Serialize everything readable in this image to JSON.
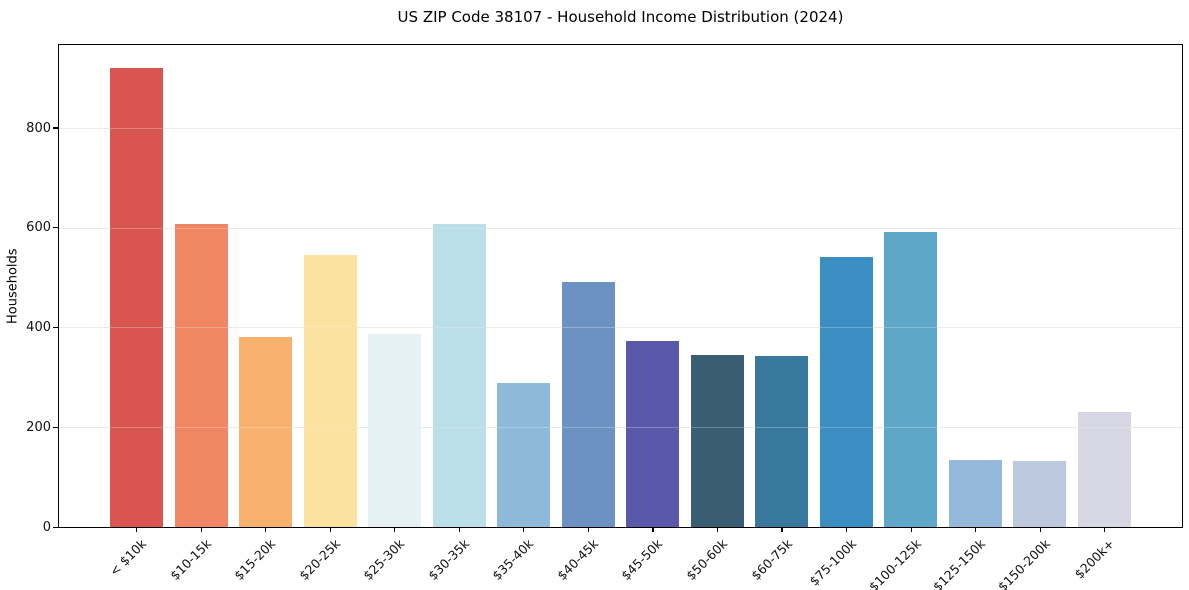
{
  "chart_data": {
    "type": "bar",
    "title": "US ZIP Code 38107 - Household Income Distribution (2024)",
    "xlabel": "",
    "ylabel": "Households",
    "categories": [
      "< $10k",
      "$10-15k",
      "$15-20k",
      "$20-25k",
      "$25-30k",
      "$30-35k",
      "$35-40k",
      "$40-45k",
      "$45-50k",
      "$50-60k",
      "$60-75k",
      "$75-100k",
      "$100-125k",
      "$125-150k",
      "$150-200k",
      "$200k+"
    ],
    "values": [
      920,
      607,
      381,
      545,
      387,
      607,
      289,
      491,
      373,
      345,
      343,
      541,
      591,
      134,
      132,
      230
    ],
    "bar_colors": [
      "#d8564f",
      "#f08663",
      "#f9b16e",
      "#fce2a0",
      "#e5f1f3",
      "#badfe9",
      "#8ebad9",
      "#6b92c3",
      "#5a59a9",
      "#395e74",
      "#38789f",
      "#3a8ec2",
      "#5fa7c9",
      "#94b9da",
      "#bcc9de",
      "#d6d7e3"
    ],
    "yticks": [
      0,
      200,
      400,
      600,
      800
    ],
    "ylim": [
      0,
      966
    ],
    "grid": "horizontal-only",
    "gridline_color": "#e9e9e9",
    "legend": "none",
    "xtick_rotation_deg": 45
  }
}
